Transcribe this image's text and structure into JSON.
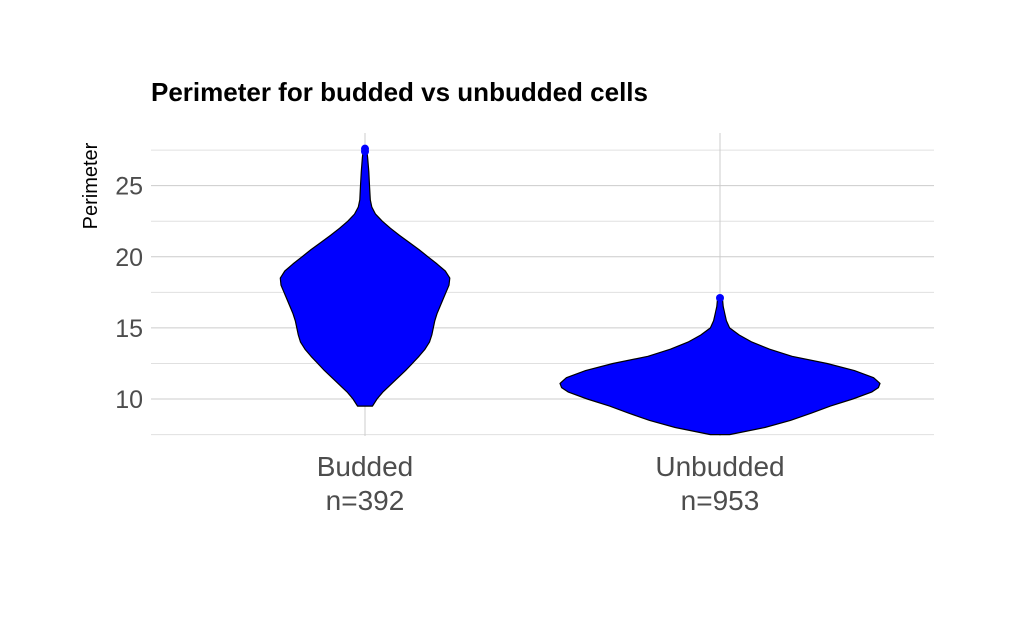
{
  "chart_data": {
    "type": "violin",
    "title": "Perimeter for budded vs unbudded cells",
    "xlabel": "",
    "ylabel": "Perimeter",
    "ylim": [
      7.4,
      28.7
    ],
    "yticks": [
      10,
      15,
      20,
      25
    ],
    "grid": true,
    "fill_color": "#0000ff",
    "outline_color": "#000000",
    "categories": [
      "Budded",
      "Unbudded"
    ],
    "category_counts": [
      "n=392",
      "n=953"
    ],
    "series": [
      {
        "category": "Budded",
        "min": 9.5,
        "max": 27.6,
        "outliers": [
          27.6,
          27.4
        ],
        "density": [
          [
            9.5,
            0.1
          ],
          [
            10.0,
            0.16
          ],
          [
            10.5,
            0.24
          ],
          [
            11.0,
            0.34
          ],
          [
            11.5,
            0.44
          ],
          [
            12.0,
            0.54
          ],
          [
            12.5,
            0.63
          ],
          [
            13.0,
            0.72
          ],
          [
            13.5,
            0.8
          ],
          [
            14.0,
            0.86
          ],
          [
            14.5,
            0.89
          ],
          [
            15.0,
            0.91
          ],
          [
            15.5,
            0.93
          ],
          [
            16.0,
            0.96
          ],
          [
            16.5,
            1.0
          ],
          [
            17.0,
            1.04
          ],
          [
            17.5,
            1.08
          ],
          [
            18.0,
            1.12
          ],
          [
            18.5,
            1.13
          ],
          [
            19.0,
            1.07
          ],
          [
            19.5,
            0.96
          ],
          [
            20.0,
            0.84
          ],
          [
            20.5,
            0.72
          ],
          [
            21.0,
            0.59
          ],
          [
            21.5,
            0.46
          ],
          [
            22.0,
            0.34
          ],
          [
            22.5,
            0.23
          ],
          [
            23.0,
            0.14
          ],
          [
            23.5,
            0.09
          ],
          [
            24.0,
            0.07
          ],
          [
            25.0,
            0.06
          ],
          [
            26.0,
            0.05
          ],
          [
            27.0,
            0.035
          ],
          [
            27.6,
            0.02
          ]
        ]
      },
      {
        "category": "Unbudded",
        "min": 7.5,
        "max": 17.1,
        "outliers": [
          17.1,
          16.1,
          15.9
        ],
        "density": [
          [
            7.5,
            0.06
          ],
          [
            8.0,
            0.28
          ],
          [
            8.5,
            0.44
          ],
          [
            9.0,
            0.57
          ],
          [
            9.5,
            0.69
          ],
          [
            10.0,
            0.83
          ],
          [
            10.5,
            0.95
          ],
          [
            10.8,
            0.99
          ],
          [
            11.1,
            1.0
          ],
          [
            11.5,
            0.96
          ],
          [
            12.0,
            0.84
          ],
          [
            12.5,
            0.67
          ],
          [
            13.0,
            0.45
          ],
          [
            13.5,
            0.31
          ],
          [
            14.0,
            0.2
          ],
          [
            14.5,
            0.12
          ],
          [
            15.0,
            0.06
          ],
          [
            15.5,
            0.04
          ],
          [
            16.0,
            0.03
          ],
          [
            16.5,
            0.02
          ],
          [
            17.1,
            0.015
          ]
        ]
      }
    ]
  }
}
